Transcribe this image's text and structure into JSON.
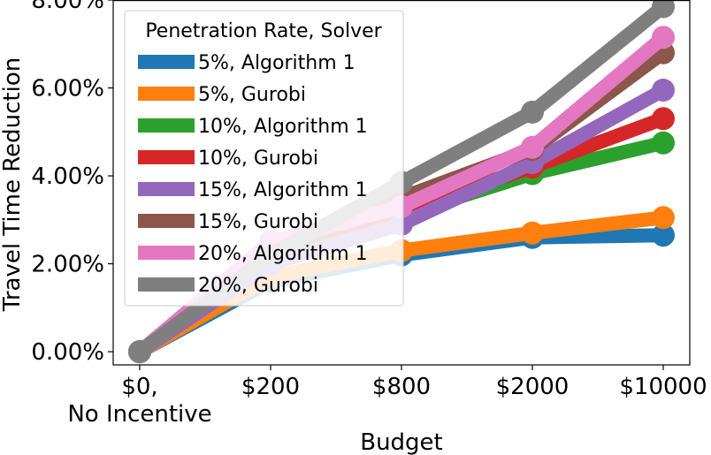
{
  "chart_data": {
    "type": "line",
    "xlabel": "Budget",
    "ylabel": "Travel Time Reduction",
    "categories": [
      "$0,\nNo Incentive",
      "$200",
      "$800",
      "$2000",
      "$10000"
    ],
    "yticks": [
      "0.00%",
      "2.00%",
      "4.00%",
      "6.00%",
      "8.00%"
    ],
    "ylim": [
      -0.3,
      8.0
    ],
    "grid": false,
    "legend": {
      "title": "Penetration Rate, Solver",
      "placement": "upper-left"
    },
    "series": [
      {
        "name": "5%, Algorithm 1",
        "color": "#1f77b4",
        "values": [
          0.0,
          1.6,
          2.2,
          2.6,
          2.65
        ]
      },
      {
        "name": "5%, Gurobi",
        "color": "#ff7f0e",
        "values": [
          0.0,
          1.7,
          2.3,
          2.7,
          3.05
        ]
      },
      {
        "name": "10%, Algorithm 1",
        "color": "#2ca02c",
        "values": [
          0.0,
          2.2,
          3.1,
          4.05,
          4.75
        ]
      },
      {
        "name": "10%, Gurobi",
        "color": "#d62728",
        "values": [
          0.0,
          2.4,
          3.2,
          4.2,
          5.3
        ]
      },
      {
        "name": "15%, Algorithm 1",
        "color": "#9467bd",
        "values": [
          0.0,
          2.0,
          2.9,
          4.3,
          5.95
        ]
      },
      {
        "name": "15%, Gurobi",
        "color": "#8c564b",
        "values": [
          0.0,
          2.3,
          3.5,
          4.6,
          6.8
        ]
      },
      {
        "name": "20%, Algorithm 1",
        "color": "#e377c2",
        "values": [
          0.0,
          2.5,
          3.3,
          4.65,
          7.15
        ]
      },
      {
        "name": "20%, Gurobi",
        "color": "#7f7f7f",
        "values": [
          0.0,
          2.2,
          3.85,
          5.45,
          7.85
        ]
      }
    ]
  }
}
